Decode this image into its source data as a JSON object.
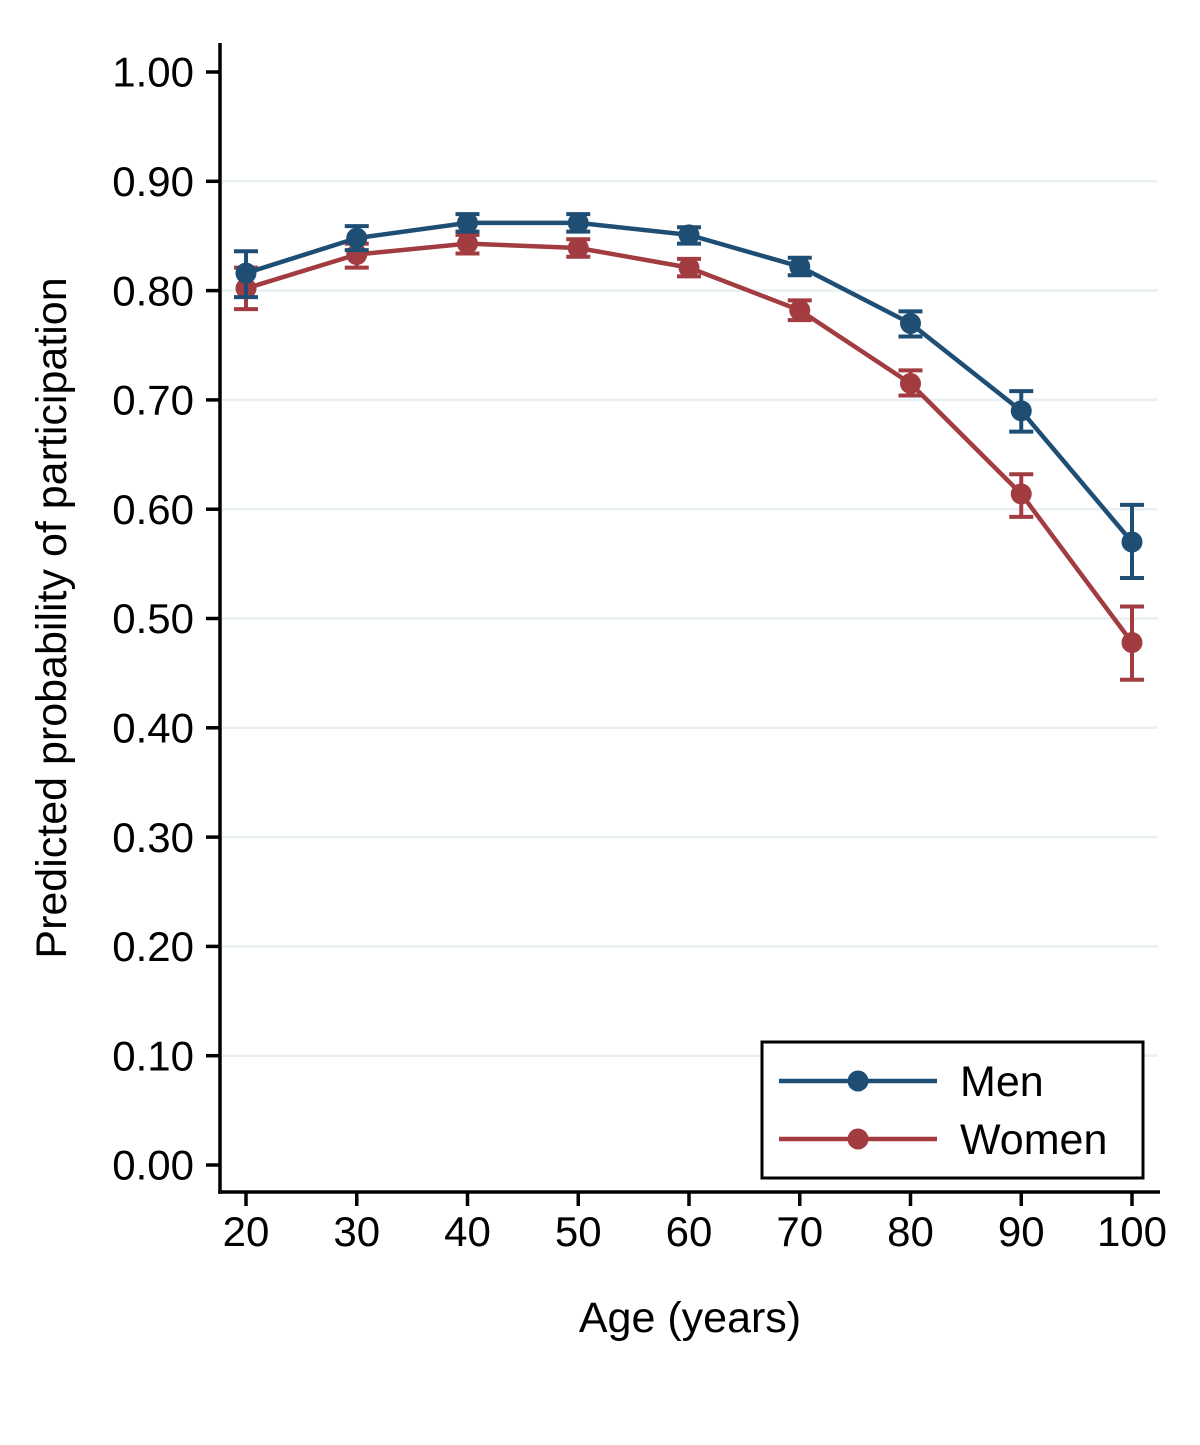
{
  "figure": {
    "background": "#ffffff",
    "axis_color": "#000000",
    "gridline_color": "#e8f0f3",
    "text_color": "#000000",
    "legend_background": "#ffffff",
    "legend_border_color": "#000000"
  },
  "chart_data": {
    "type": "line",
    "title": "",
    "xlabel": "Age (years)",
    "ylabel": "Predicted probability of participation",
    "x": [
      20,
      30,
      40,
      50,
      60,
      70,
      80,
      90,
      100
    ],
    "x_tick_labels": [
      "20",
      "30",
      "40",
      "50",
      "60",
      "70",
      "80",
      "90",
      "100"
    ],
    "y_ticks": [
      0.0,
      0.1,
      0.2,
      0.3,
      0.4,
      0.5,
      0.6,
      0.7,
      0.8,
      0.9,
      1.0
    ],
    "y_tick_labels": [
      "0.00",
      "0.10",
      "0.20",
      "0.30",
      "0.40",
      "0.50",
      "0.60",
      "0.70",
      "0.80",
      "0.90",
      "1.00"
    ],
    "ylim": [
      0,
      1
    ],
    "grid": "horizontal-light",
    "error_bars": true,
    "legend": {
      "position": "inside-bottom-right",
      "entries": [
        "Men",
        "Women"
      ]
    },
    "series": [
      {
        "name": "Men",
        "color": "#1f4e75",
        "marker": "circle",
        "values": [
          0.816,
          0.848,
          0.862,
          0.862,
          0.851,
          0.822,
          0.77,
          0.69,
          0.57
        ],
        "ci_low": [
          0.794,
          0.837,
          0.854,
          0.854,
          0.843,
          0.814,
          0.758,
          0.671,
          0.537
        ],
        "ci_high": [
          0.836,
          0.859,
          0.87,
          0.87,
          0.858,
          0.83,
          0.781,
          0.708,
          0.604
        ]
      },
      {
        "name": "Women",
        "color": "#a23c40",
        "marker": "circle",
        "values": [
          0.802,
          0.833,
          0.843,
          0.839,
          0.821,
          0.782,
          0.715,
          0.614,
          0.478
        ],
        "ci_low": [
          0.783,
          0.821,
          0.834,
          0.831,
          0.813,
          0.773,
          0.704,
          0.593,
          0.444
        ],
        "ci_high": [
          0.821,
          0.843,
          0.851,
          0.847,
          0.829,
          0.791,
          0.727,
          0.632,
          0.511
        ]
      }
    ]
  }
}
